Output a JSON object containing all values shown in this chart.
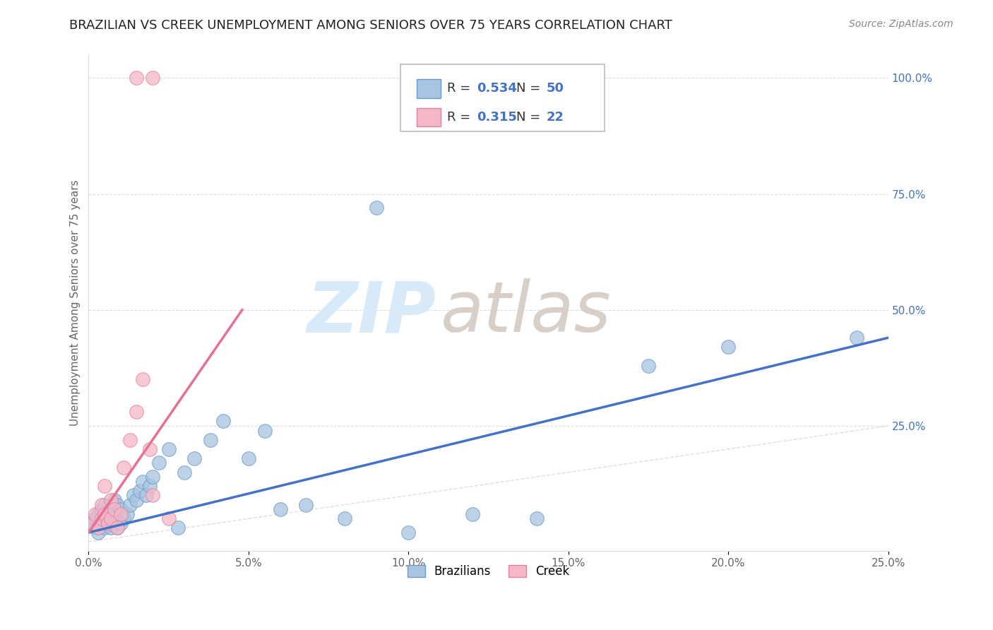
{
  "title": "BRAZILIAN VS CREEK UNEMPLOYMENT AMONG SENIORS OVER 75 YEARS CORRELATION CHART",
  "source": "Source: ZipAtlas.com",
  "ylabel": "Unemployment Among Seniors over 75 years",
  "xlim": [
    0.0,
    0.25
  ],
  "ylim": [
    -0.02,
    1.05
  ],
  "xtick_labels": [
    "0.0%",
    "5.0%",
    "10.0%",
    "15.0%",
    "20.0%",
    "25.0%"
  ],
  "xtick_values": [
    0.0,
    0.05,
    0.1,
    0.15,
    0.2,
    0.25
  ],
  "ytick_labels": [
    "25.0%",
    "50.0%",
    "75.0%",
    "100.0%"
  ],
  "ytick_values": [
    0.25,
    0.5,
    0.75,
    1.0
  ],
  "blue_R": 0.534,
  "blue_N": 50,
  "pink_R": 0.315,
  "pink_N": 22,
  "blue_line_color": "#4472c4",
  "pink_line_color": "#e87090",
  "dot_color_blue": "#a8c4e0",
  "dot_color_pink": "#f4b8c8",
  "dot_edge_blue": "#6699cc",
  "dot_edge_pink": "#e080a0",
  "watermark_zip_color": "#d8eaf8",
  "watermark_atlas_color": "#d8d0c8",
  "background_color": "#ffffff",
  "grid_color": "#dddddd",
  "blue_scatter_x": [
    0.001,
    0.002,
    0.002,
    0.003,
    0.003,
    0.004,
    0.004,
    0.005,
    0.005,
    0.005,
    0.006,
    0.006,
    0.007,
    0.007,
    0.008,
    0.008,
    0.008,
    0.009,
    0.009,
    0.01,
    0.01,
    0.011,
    0.012,
    0.013,
    0.014,
    0.015,
    0.016,
    0.017,
    0.018,
    0.019,
    0.02,
    0.022,
    0.025,
    0.028,
    0.03,
    0.033,
    0.038,
    0.042,
    0.05,
    0.055,
    0.06,
    0.068,
    0.08,
    0.09,
    0.1,
    0.12,
    0.14,
    0.175,
    0.2,
    0.24
  ],
  "blue_scatter_y": [
    0.04,
    0.03,
    0.05,
    0.02,
    0.06,
    0.04,
    0.07,
    0.03,
    0.05,
    0.08,
    0.04,
    0.06,
    0.03,
    0.07,
    0.04,
    0.06,
    0.09,
    0.03,
    0.08,
    0.04,
    0.07,
    0.05,
    0.06,
    0.08,
    0.1,
    0.09,
    0.11,
    0.13,
    0.1,
    0.12,
    0.14,
    0.17,
    0.2,
    0.03,
    0.15,
    0.18,
    0.22,
    0.26,
    0.18,
    0.24,
    0.07,
    0.08,
    0.05,
    0.72,
    0.02,
    0.06,
    0.05,
    0.38,
    0.42,
    0.44
  ],
  "pink_scatter_x": [
    0.001,
    0.002,
    0.003,
    0.004,
    0.004,
    0.005,
    0.005,
    0.006,
    0.007,
    0.007,
    0.008,
    0.009,
    0.01,
    0.011,
    0.013,
    0.015,
    0.017,
    0.019,
    0.02,
    0.025,
    0.015,
    0.02
  ],
  "pink_scatter_y": [
    0.04,
    0.06,
    0.03,
    0.05,
    0.08,
    0.06,
    0.12,
    0.04,
    0.05,
    0.09,
    0.07,
    0.03,
    0.06,
    0.16,
    0.22,
    0.28,
    0.35,
    0.2,
    0.1,
    0.05,
    1.0,
    1.0
  ],
  "blue_line_x": [
    0.0,
    0.25
  ],
  "blue_line_y": [
    0.02,
    0.44
  ],
  "pink_line_x": [
    0.0,
    0.048
  ],
  "pink_line_y": [
    0.02,
    0.5
  ]
}
